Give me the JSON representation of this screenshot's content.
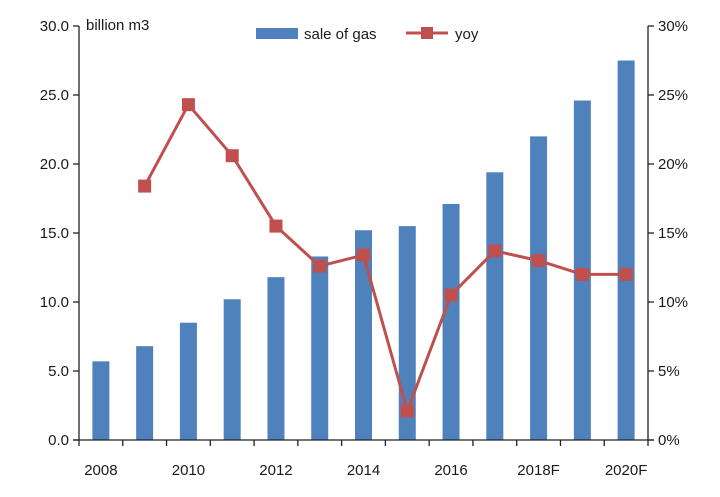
{
  "chart_data": {
    "type": "bar",
    "categories": [
      "2008",
      "2009",
      "2010",
      "2011",
      "2012",
      "2013",
      "2014",
      "2015",
      "2016",
      "2017",
      "2018F",
      "2019F",
      "2020F"
    ],
    "x_tick_labels": [
      "2008",
      "2010",
      "2012",
      "2014",
      "2016",
      "2018F",
      "2020F"
    ],
    "unit_label": "billion m3",
    "y_left": {
      "ylim": [
        0,
        30
      ],
      "tick_labels": [
        "0.0",
        "5.0",
        "10.0",
        "15.0",
        "20.0",
        "25.0",
        "30.0"
      ]
    },
    "y_right": {
      "ylim": [
        0,
        30
      ],
      "tick_labels": [
        "0%",
        "5%",
        "10%",
        "15%",
        "20%",
        "25%",
        "30%"
      ]
    },
    "series": [
      {
        "name": "sale of gas",
        "type": "bar",
        "axis": "left",
        "color": "#4f81bd",
        "values": [
          5.7,
          6.8,
          8.5,
          10.2,
          11.8,
          13.3,
          15.2,
          15.5,
          17.1,
          19.4,
          22.0,
          24.6,
          27.5
        ]
      },
      {
        "name": "yoy",
        "type": "line",
        "axis": "right",
        "unit": "%",
        "color": "#c0504d",
        "values": [
          null,
          18.4,
          24.3,
          20.6,
          15.5,
          12.6,
          13.4,
          2.1,
          10.5,
          13.7,
          13.0,
          12.0,
          12.0
        ]
      }
    ],
    "legend_position": "top-center",
    "grid": false
  }
}
